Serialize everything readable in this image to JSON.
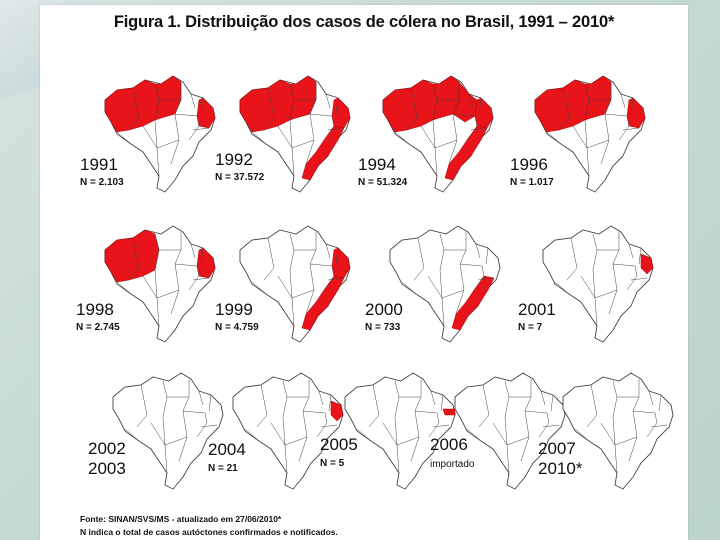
{
  "figure": {
    "title": "Figura 1. Distribuição dos casos de cólera no Brasil, 1991 – 2010*",
    "highlight_color": "#e8141a",
    "map_outline_color": "#444444",
    "panels": [
      {
        "year": "1991",
        "n_label": "N = 2.103",
        "affected_regions": [
          "north-west",
          "north-central",
          "north-east-coast"
        ]
      },
      {
        "year": "1992",
        "n_label": "N = 37.572",
        "affected_regions": [
          "north-west",
          "north-central",
          "north-east-coast",
          "east-coast"
        ]
      },
      {
        "year": "1994",
        "n_label": "N = 51.324",
        "affected_regions": [
          "north-west",
          "north-central",
          "north-east",
          "north-east-coast",
          "east-coast"
        ]
      },
      {
        "year": "1996",
        "n_label": "N = 1.017",
        "affected_regions": [
          "north-west",
          "north-central",
          "north-east-coast"
        ]
      },
      {
        "year": "1998",
        "n_label": "N = 2.745",
        "affected_regions": [
          "north-west",
          "north-east-coast"
        ]
      },
      {
        "year": "1999",
        "n_label": "N = 4.759",
        "affected_regions": [
          "north-east-coast",
          "east-coast"
        ]
      },
      {
        "year": "2000",
        "n_label": "N = 733",
        "affected_regions": [
          "east-coast"
        ]
      },
      {
        "year": "2001",
        "n_label": "N = 7",
        "affected_regions": [
          "east-tip"
        ]
      },
      {
        "year": "2002",
        "year2": "2003",
        "affected_regions": []
      },
      {
        "year": "2004",
        "n_label": "N = 21",
        "affected_regions": [
          "east-tip"
        ]
      },
      {
        "year": "2005",
        "n_label": "N = 5",
        "affected_regions": [
          "east-tip-small"
        ]
      },
      {
        "year": "2006",
        "note": "importado",
        "affected_regions": []
      },
      {
        "year": "2007",
        "year2": "2010*",
        "affected_regions": []
      }
    ]
  },
  "source": {
    "line1": "Fonte: SINAN/SVS/MS - atualizado em 27/06/2010*",
    "line2": "N indica o total de casos autóctones confirmados e notificados."
  }
}
